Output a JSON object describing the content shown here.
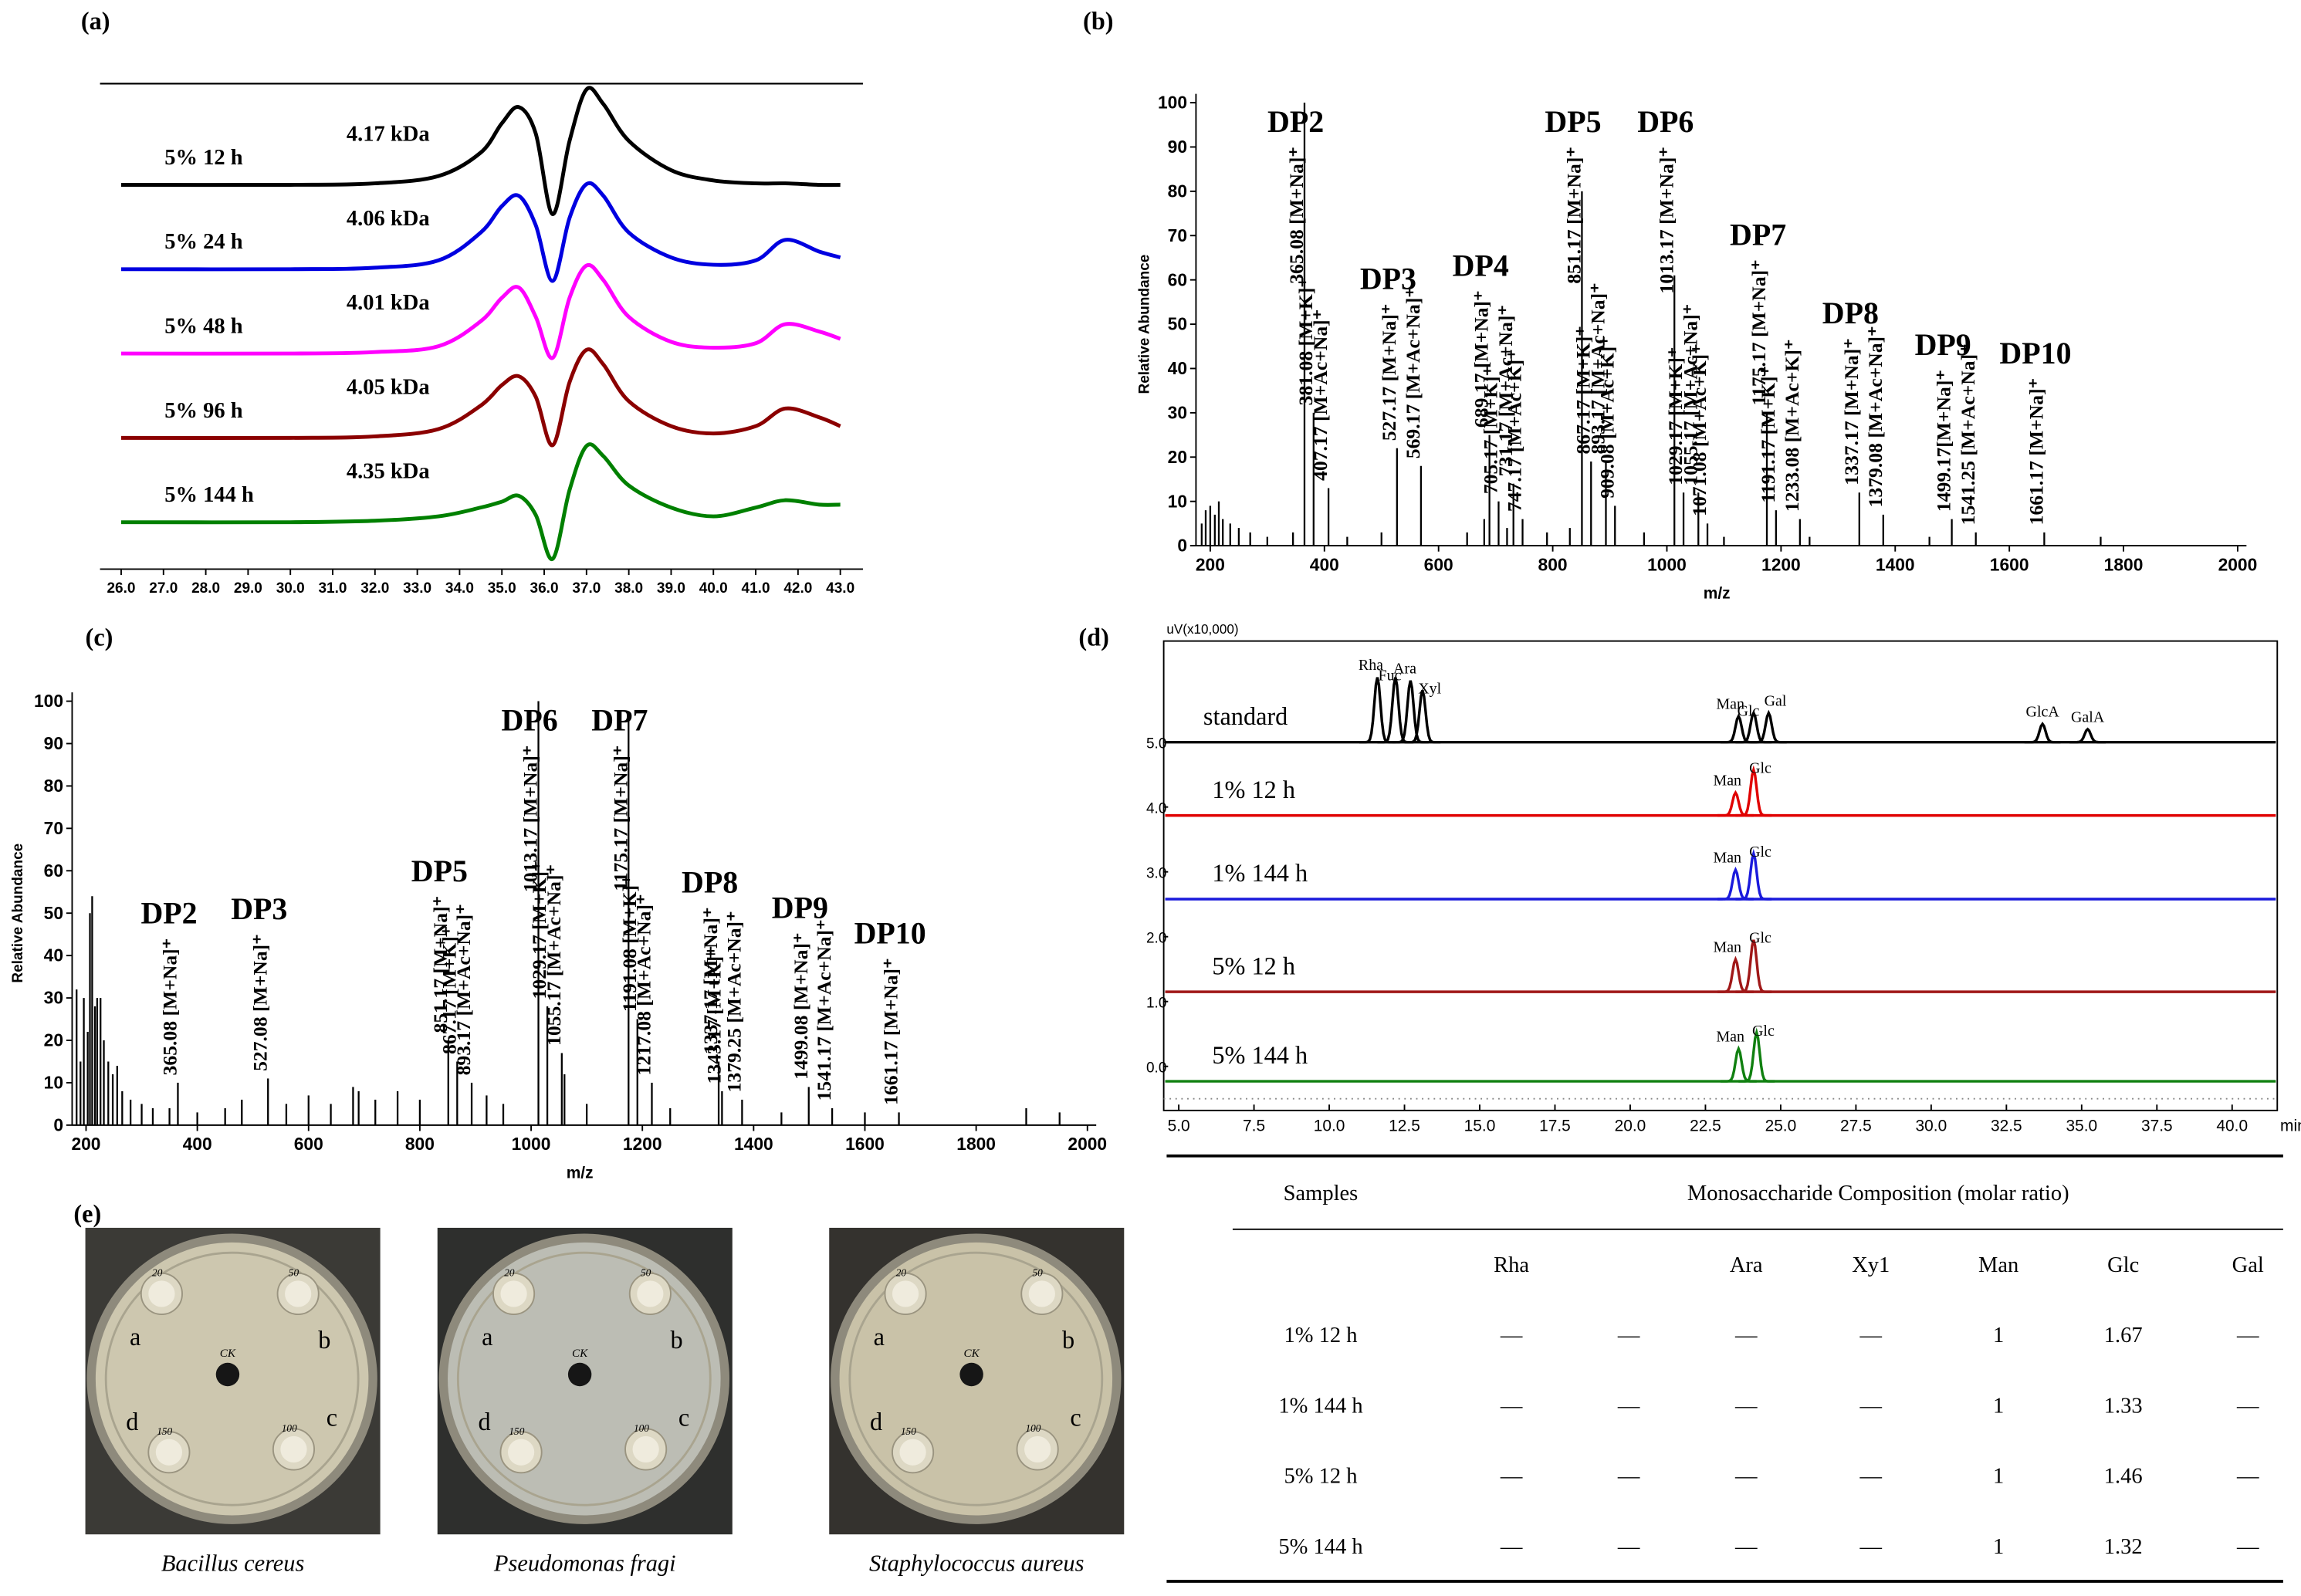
{
  "chart_data": [
    {
      "type": "line",
      "panel": "(a)",
      "xlim": [
        25.5,
        43.5
      ],
      "xticks": [
        {
          "value": 26,
          "label": "26.0"
        },
        {
          "value": 27,
          "label": "27.0"
        },
        {
          "value": 28,
          "label": "28.0"
        },
        {
          "value": 29,
          "label": "29.0"
        },
        {
          "value": 30,
          "label": "30.0"
        },
        {
          "value": 31,
          "label": "31.0"
        },
        {
          "value": 32,
          "label": "32.0"
        },
        {
          "value": 33,
          "label": "33.0"
        },
        {
          "value": 34,
          "label": "34.0"
        },
        {
          "value": 35,
          "label": "35.0"
        },
        {
          "value": 36,
          "label": "36.0"
        },
        {
          "value": 37,
          "label": "37.0"
        },
        {
          "value": 38,
          "label": "38.0"
        },
        {
          "value": 39,
          "label": "39.0"
        },
        {
          "value": 40,
          "label": "40.0"
        },
        {
          "value": 41,
          "label": "41.0"
        },
        {
          "value": 42,
          "label": "42.0"
        },
        {
          "value": 43,
          "label": "43.0"
        }
      ],
      "x": [
        26,
        30,
        32,
        33.5,
        34.5,
        35,
        35.4,
        35.8,
        36.2,
        36.6,
        37,
        37.4,
        38,
        39,
        40,
        41,
        41.7,
        42.5,
        43
      ],
      "series": [
        {
          "name": "5% 12 h",
          "annotation": "4.17 kDa",
          "color": "#000000",
          "values": [
            0,
            0,
            0.01,
            0.06,
            0.22,
            0.42,
            0.53,
            0.35,
            -0.2,
            0.3,
            0.65,
            0.55,
            0.3,
            0.1,
            0.03,
            0.01,
            0.01,
            0,
            0
          ]
        },
        {
          "name": "5% 24 h",
          "annotation": "4.06 kDa",
          "color": "#0000e0",
          "values": [
            0,
            0,
            0.01,
            0.06,
            0.25,
            0.43,
            0.5,
            0.3,
            -0.08,
            0.35,
            0.58,
            0.5,
            0.25,
            0.08,
            0.03,
            0.06,
            0.2,
            0.12,
            0.08
          ]
        },
        {
          "name": "5% 48 h",
          "annotation": "4.01 kDa",
          "color": "#ff00ff",
          "values": [
            0,
            0,
            0.01,
            0.05,
            0.22,
            0.38,
            0.45,
            0.25,
            -0.03,
            0.38,
            0.6,
            0.5,
            0.25,
            0.08,
            0.04,
            0.07,
            0.2,
            0.15,
            0.1
          ]
        },
        {
          "name": "5% 96 h",
          "annotation": "4.05 kDa",
          "color": "#8b0000",
          "values": [
            0,
            0,
            0.01,
            0.06,
            0.22,
            0.36,
            0.42,
            0.28,
            -0.05,
            0.38,
            0.6,
            0.5,
            0.25,
            0.08,
            0.03,
            0.08,
            0.2,
            0.14,
            0.08
          ]
        },
        {
          "name": "5% 144 h",
          "annotation": "4.35 kDa",
          "color": "#008000",
          "values": [
            0,
            0,
            0.01,
            0.04,
            0.1,
            0.14,
            0.18,
            0.05,
            -0.25,
            0.22,
            0.52,
            0.45,
            0.25,
            0.1,
            0.04,
            0.1,
            0.15,
            0.12,
            0.12
          ]
        }
      ]
    },
    {
      "type": "stem",
      "panel": "(b)",
      "xlabel": "m/z",
      "ylabel": "Relative Abundance",
      "color": "#000000",
      "xlim": [
        175,
        2000
      ],
      "ylim": [
        0,
        100
      ],
      "xticks": [
        200,
        400,
        600,
        800,
        1000,
        1200,
        1400,
        1600,
        1800,
        2000
      ],
      "yticks": [
        0,
        10,
        20,
        30,
        40,
        50,
        60,
        70,
        80,
        90,
        100
      ],
      "x": [
        365.08,
        381.08,
        407.17,
        527.17,
        569.17,
        689.17,
        705.17,
        731.17,
        747.17,
        851.17,
        867.17,
        893.17,
        909.08,
        1013.17,
        1029.17,
        1055.17,
        1071.08,
        1175.17,
        1191.17,
        1233.08,
        1337.17,
        1379.08,
        1499.17,
        1541.25,
        1661.17,
        185,
        192,
        200,
        208,
        215,
        222,
        235,
        250,
        270,
        300,
        345,
        440,
        500,
        650,
        680,
        720,
        790,
        830,
        960,
        1100,
        1250,
        1460,
        1760
      ],
      "values": [
        100,
        30,
        13,
        22,
        18,
        25,
        10,
        14,
        6,
        80,
        19,
        19,
        9,
        61,
        12,
        12,
        5,
        30,
        8,
        6,
        12,
        7,
        6,
        3,
        3,
        5,
        8,
        9,
        7,
        10,
        6,
        5,
        4,
        3,
        2,
        3,
        2,
        3,
        3,
        6,
        4,
        3,
        4,
        3,
        2,
        2,
        2,
        2
      ],
      "peak_labels": [
        "365.08 [M+Na]⁺",
        "381.08 [M+K]⁺",
        "407.17 [M+Ac+Na]⁺",
        "527.17 [M+Na]⁺",
        "569.17 [M+Ac+Na]⁺",
        "689.17 [M+Na]⁺",
        "705.17 [M+K]⁺",
        "731.17 [M+Ac+Na]⁺",
        "747.17 [M+Ac+K]⁺",
        "851.17 [M+Na]⁺",
        "867.17 [M+K]⁺",
        "893.17 [M+Ac+Na]⁺",
        "909.08 [M+Ac+K]⁺",
        "1013.17 [M+Na]⁺",
        "1029.17 [M+K]⁺",
        "1055.17 [M+Ac+Na]⁺",
        "1071.08 [M+Ac+K]⁺",
        "1175.17 [M+Na]⁺",
        "1191.17 [M+K]⁺",
        "1233.08 [M+Ac+K]⁺",
        "1337.17 [M+Na]⁺",
        "1379.08 [M+Ac+Na]⁺",
        "1499.17[M+Na]⁺",
        "1541.25 [M+Ac+Na]⁺",
        "1661.17 [M+Na]⁺",
        null,
        null,
        null,
        null,
        null,
        null,
        null,
        null,
        null,
        null,
        null,
        null,
        null,
        null,
        null,
        null,
        null,
        null,
        null,
        null,
        null,
        null,
        null
      ],
      "dp_labels": [
        "DP2",
        null,
        null,
        "DP3",
        null,
        "DP4",
        null,
        null,
        null,
        "DP5",
        null,
        null,
        null,
        "DP6",
        null,
        null,
        null,
        "DP7",
        null,
        null,
        "DP8",
        null,
        "DP9",
        null,
        "DP10",
        null,
        null,
        null,
        null,
        null,
        null,
        null,
        null,
        null,
        null,
        null,
        null,
        null,
        null,
        null,
        null,
        null,
        null,
        null,
        null,
        null,
        null,
        null
      ]
    },
    {
      "type": "stem",
      "panel": "(c)",
      "xlabel": "m/z",
      "ylabel": "Relative Abundance",
      "color": "#000000",
      "xlim": [
        175,
        2000
      ],
      "ylim": [
        0,
        100
      ],
      "xticks": [
        200,
        400,
        600,
        800,
        1000,
        1200,
        1400,
        1600,
        1800,
        2000
      ],
      "yticks": [
        0,
        10,
        20,
        30,
        40,
        50,
        60,
        70,
        80,
        90,
        100
      ],
      "x": [
        365.08,
        527.08,
        851.17,
        867.17,
        893.17,
        1013.17,
        1029.17,
        1055.17,
        1175.17,
        1191.08,
        1217.08,
        1337.17,
        1343.17,
        1379.25,
        1499.08,
        1541.17,
        1661.17,
        183,
        190,
        196,
        203,
        207,
        211,
        216,
        220,
        226,
        232,
        240,
        248,
        256,
        265,
        280,
        300,
        320,
        350,
        400,
        450,
        480,
        560,
        600,
        640,
        680,
        690,
        720,
        760,
        800,
        920,
        950,
        1060,
        1100,
        1250,
        1450,
        1600,
        1890,
        1950
      ],
      "values": [
        10,
        11,
        20,
        15,
        10,
        100,
        28,
        17,
        97,
        25,
        10,
        15,
        8,
        6,
        9,
        4,
        3,
        32,
        15,
        30,
        22,
        50,
        54,
        28,
        30,
        30,
        20,
        15,
        12,
        14,
        8,
        6,
        5,
        4,
        4,
        3,
        4,
        6,
        5,
        7,
        5,
        9,
        8,
        6,
        8,
        6,
        7,
        5,
        12,
        5,
        4,
        3,
        3,
        4,
        3
      ],
      "peak_labels": [
        "365.08 [M+Na]⁺",
        "527.08 [M+Na]⁺",
        "851.17 [M+Na]⁺",
        "867.17 [M+K]⁺",
        "893.17 [M+Ac+Na]⁺",
        "1013.17 [M+Na]⁺",
        "1029.17 [M+K]⁺",
        "1055.17 [M+Ac+Na]⁺",
        "1175.17 [M+Na]⁺",
        "1191.08 [M+K]⁺",
        "1217.08 [M+Ac+Na]⁺",
        "1337.17 [M+Na]⁺",
        "1343.17 [M+K]⁺",
        "1379.25 [M+Ac+Na]⁺",
        "1499.08 [M+Na]⁺",
        "1541.17 [M+Ac+Na]⁺",
        "1661.17 [M+Na]⁺",
        null,
        null,
        null,
        null,
        null,
        null,
        null,
        null,
        null,
        null,
        null,
        null,
        null,
        null,
        null,
        null,
        null,
        null,
        null,
        null,
        null,
        null,
        null,
        null,
        null,
        null,
        null,
        null,
        null,
        null,
        null,
        null,
        null,
        null,
        null,
        null,
        null,
        null
      ],
      "dp_labels": [
        "DP2",
        "DP3",
        "DP5",
        null,
        null,
        "DP6",
        null,
        null,
        "DP7",
        null,
        null,
        "DP8",
        null,
        null,
        "DP9",
        null,
        "DP10",
        null,
        null,
        null,
        null,
        null,
        null,
        null,
        null,
        null,
        null,
        null,
        null,
        null,
        null,
        null,
        null,
        null,
        null,
        null,
        null,
        null,
        null,
        null,
        null,
        null,
        null,
        null,
        null,
        null,
        null,
        null,
        null,
        null,
        null,
        null,
        null,
        null,
        null
      ]
    },
    {
      "type": "chromatogram",
      "panel": "(d)",
      "unit_label": "uV(x10,000)",
      "xlabel": "min",
      "xlim": [
        4.5,
        41.5
      ],
      "ylim": [
        -0.68,
        6.56
      ],
      "xticks": [
        {
          "value": 5,
          "label": "5.0"
        },
        {
          "value": 7.5,
          "label": "7.5"
        },
        {
          "value": 10,
          "label": "10.0"
        },
        {
          "value": 12.5,
          "label": "12.5"
        },
        {
          "value": 15,
          "label": "15.0"
        },
        {
          "value": 17.5,
          "label": "17.5"
        },
        {
          "value": 20,
          "label": "20.0"
        },
        {
          "value": 22.5,
          "label": "22.5"
        },
        {
          "value": 25,
          "label": "25.0"
        },
        {
          "value": 27.5,
          "label": "27.5"
        },
        {
          "value": 30,
          "label": "30.0"
        },
        {
          "value": 32.5,
          "label": "32.5"
        },
        {
          "value": 35,
          "label": "35.0"
        },
        {
          "value": 37.5,
          "label": "37.5"
        },
        {
          "value": 40,
          "label": "40.0"
        }
      ],
      "yticks": [
        {
          "value": 5,
          "label": "5.0"
        },
        {
          "value": 4,
          "label": "4.0"
        },
        {
          "value": 3,
          "label": "3.0"
        },
        {
          "value": 2,
          "label": "2.0"
        },
        {
          "value": 1,
          "label": "1.0"
        },
        {
          "value": 0,
          "label": "0.0"
        }
      ],
      "series": [
        {
          "name": "standard",
          "color": "#000000",
          "baseline": 5.0,
          "peak_x": [
            11.6,
            12.2,
            12.7,
            13.1,
            23.6,
            24.1,
            24.6,
            33.7,
            35.2
          ],
          "values": [
            1.0,
            1.0,
            0.95,
            0.8,
            0.4,
            0.45,
            0.45,
            0.28,
            0.2
          ],
          "peak_labels": [
            "Rha",
            "Fuc",
            "Ara",
            "Xyl",
            "Man",
            "Glc",
            "Gal",
            "GlcA",
            "GalA"
          ]
        },
        {
          "name": "1% 12 h",
          "color": "#e00000",
          "baseline": 3.87,
          "peak_x": [
            23.5,
            24.1
          ],
          "values": [
            0.35,
            0.7
          ],
          "peak_labels": [
            "Man",
            "Glc"
          ]
        },
        {
          "name": "1% 144 h",
          "color": "#1a1adc",
          "baseline": 2.58,
          "peak_x": [
            23.5,
            24.1
          ],
          "values": [
            0.45,
            0.7
          ],
          "peak_labels": [
            "Man",
            "Glc"
          ]
        },
        {
          "name": "5% 12 h",
          "color": "#a01818",
          "baseline": 1.15,
          "peak_x": [
            23.5,
            24.1
          ],
          "values": [
            0.5,
            0.8
          ],
          "peak_labels": [
            "Man",
            "Glc"
          ]
        },
        {
          "name": "5% 144 h",
          "color": "#108010",
          "baseline": -0.23,
          "peak_x": [
            23.6,
            24.2
          ],
          "values": [
            0.5,
            0.75
          ],
          "peak_labels": [
            "Man",
            "Glc"
          ]
        }
      ]
    }
  ],
  "table": {
    "header": [
      "Samples",
      "Monosaccharide Composition (molar ratio)"
    ],
    "columns": [
      "Rha",
      null,
      "Ara",
      "Xy1",
      "Man",
      "Glc",
      "Gal"
    ],
    "rows": [
      [
        "1% 12 h",
        "—",
        "—",
        "—",
        "—",
        1,
        1.67,
        "—"
      ],
      [
        "1% 144 h",
        "—",
        "—",
        "—",
        "—",
        1,
        1.33,
        "—"
      ],
      [
        "5% 12 h",
        "—",
        "—",
        "—",
        "—",
        1,
        1.46,
        "—"
      ],
      [
        "5% 144 h",
        "—",
        "—",
        "—",
        "—",
        1,
        1.32,
        "—"
      ]
    ]
  },
  "photos": {
    "panel": "(e)",
    "center_mark": "CK",
    "well_marks": [
      "20",
      "50",
      "100",
      "150"
    ],
    "plates": [
      {
        "caption": "Bacillus cereus",
        "wells": [
          "a",
          "b",
          "c",
          "d"
        ]
      },
      {
        "caption": "Pseudomonas fragi",
        "wells": [
          "a",
          "b",
          "c",
          "d"
        ]
      },
      {
        "caption": "Staphylococcus aureus",
        "wells": [
          "a",
          "b",
          "c",
          "d"
        ]
      }
    ]
  }
}
